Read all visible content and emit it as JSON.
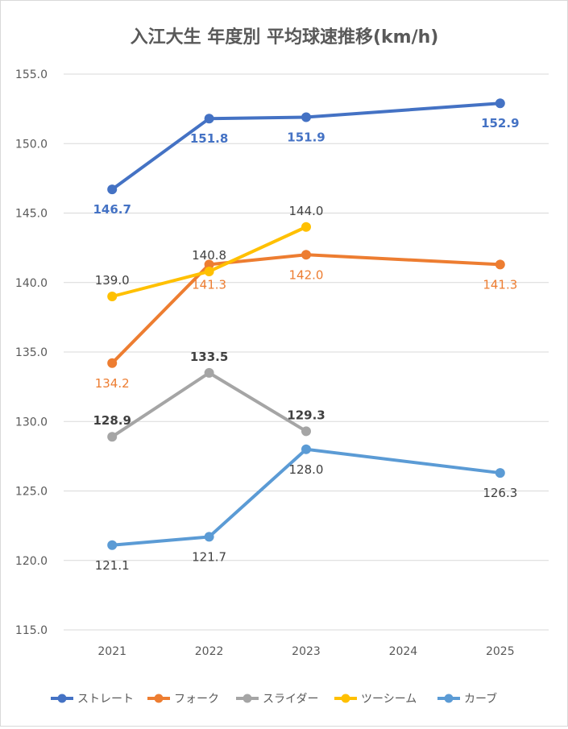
{
  "chart_data": {
    "type": "line",
    "title": "入江大生 年度別 平均球速推移(km/h)",
    "xlabel": "",
    "ylabel": "",
    "categories": [
      "2021",
      "2022",
      "2023",
      "2024",
      "2025"
    ],
    "ylim": [
      115.0,
      155.0
    ],
    "yticks": [
      "115.0",
      "120.0",
      "125.0",
      "130.0",
      "135.0",
      "140.0",
      "145.0",
      "150.0",
      "155.0"
    ],
    "grid": true,
    "legend_position": "bottom",
    "series": [
      {
        "name": "ストレート",
        "color": "#4472c4",
        "values": [
          146.7,
          151.8,
          151.9,
          null,
          152.9
        ],
        "labels": [
          "146.7",
          "151.8",
          "151.9",
          null,
          "152.9"
        ],
        "label_color": "#4472c4",
        "label_weight": "bold",
        "label_pos": [
          "below",
          "below",
          "below",
          null,
          "below"
        ]
      },
      {
        "name": "フォーク",
        "color": "#ed7d31",
        "values": [
          134.2,
          141.3,
          142.0,
          null,
          141.3
        ],
        "labels": [
          "134.2",
          "141.3",
          "142.0",
          null,
          "141.3"
        ],
        "label_color": "#ed7d31",
        "label_weight": "normal",
        "label_pos": [
          "below",
          "below",
          "below",
          null,
          "below"
        ]
      },
      {
        "name": "スライダー",
        "color": "#a5a5a5",
        "values": [
          128.9,
          133.5,
          129.3,
          null,
          null
        ],
        "labels": [
          "128.9",
          "133.5",
          "129.3",
          null,
          null
        ],
        "label_color": "#404040",
        "label_weight": "bold",
        "label_pos": [
          "above",
          "above",
          "above",
          null,
          null
        ]
      },
      {
        "name": "ツーシーム",
        "color": "#ffc000",
        "values": [
          139.0,
          140.8,
          144.0,
          null,
          null
        ],
        "labels": [
          "139.0",
          "140.8",
          "144.0",
          null,
          null
        ],
        "label_color": "#404040",
        "label_weight": "normal",
        "label_pos": [
          "above",
          "above",
          "above",
          null,
          null
        ]
      },
      {
        "name": "カーブ",
        "color": "#5b9bd5",
        "values": [
          121.1,
          121.7,
          128.0,
          null,
          126.3
        ],
        "labels": [
          "121.1",
          "121.7",
          "128.0",
          null,
          "126.3"
        ],
        "label_color": "#404040",
        "label_weight": "normal",
        "label_pos": [
          "below",
          "below",
          "below",
          null,
          "below"
        ]
      }
    ]
  }
}
